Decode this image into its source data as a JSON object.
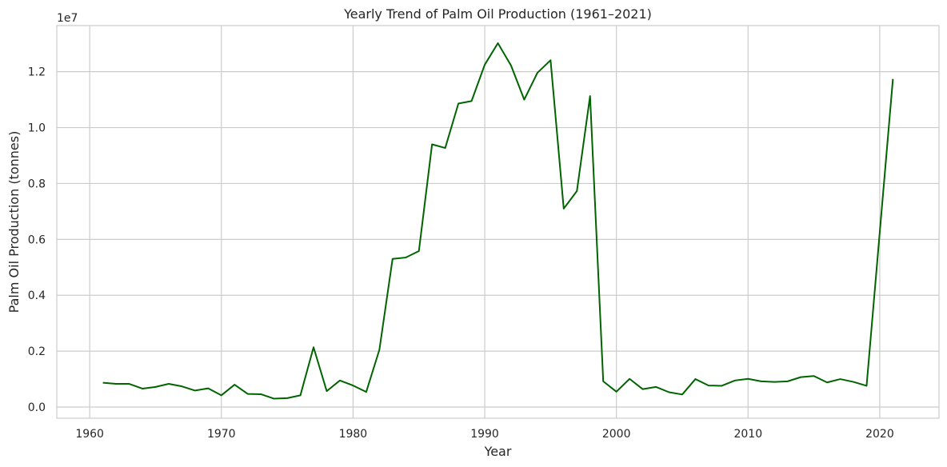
{
  "chart_data": {
    "type": "line",
    "title": "Yearly Trend of Palm Oil Production (1961–2021)",
    "xlabel": "Year",
    "ylabel": "Palm Oil Production (tonnes)",
    "y_offset_label": "1e7",
    "xlim": [
      1957.5,
      2024.5
    ],
    "ylim": [
      -0.04,
      1.365
    ],
    "y_scale_factor": 10000000,
    "x_ticks": [
      1960,
      1970,
      1980,
      1990,
      2000,
      2010,
      2020
    ],
    "x_tick_labels": [
      "1960",
      "1970",
      "1980",
      "1990",
      "2000",
      "2010",
      "2020"
    ],
    "y_ticks": [
      0.0,
      0.2,
      0.4,
      0.6,
      0.8,
      1.0,
      1.2
    ],
    "y_tick_labels": [
      "0.0",
      "0.2",
      "0.4",
      "0.6",
      "0.8",
      "1.0",
      "1.2"
    ],
    "grid": true,
    "series": [
      {
        "color": "#006400",
        "x": [
          1961,
          1962,
          1963,
          1964,
          1965,
          1966,
          1967,
          1968,
          1969,
          1970,
          1971,
          1972,
          1973,
          1974,
          1975,
          1976,
          1977,
          1978,
          1979,
          1980,
          1981,
          1982,
          1983,
          1984,
          1985,
          1986,
          1987,
          1988,
          1989,
          1990,
          1991,
          1992,
          1993,
          1994,
          1995,
          1996,
          1997,
          1998,
          1999,
          2000,
          2001,
          2002,
          2003,
          2004,
          2005,
          2006,
          2007,
          2008,
          2009,
          2010,
          2011,
          2012,
          2013,
          2014,
          2015,
          2016,
          2017,
          2018,
          2019,
          2021
        ],
        "y": [
          0.087,
          0.083,
          0.083,
          0.066,
          0.072,
          0.083,
          0.074,
          0.059,
          0.067,
          0.042,
          0.08,
          0.047,
          0.046,
          0.03,
          0.032,
          0.042,
          0.214,
          0.057,
          0.095,
          0.077,
          0.054,
          0.205,
          0.53,
          0.535,
          0.558,
          0.94,
          0.927,
          1.086,
          1.095,
          1.225,
          1.302,
          1.222,
          1.1,
          1.196,
          1.241,
          0.71,
          0.773,
          1.113,
          0.092,
          0.055,
          0.101,
          0.064,
          0.072,
          0.053,
          0.045,
          0.1,
          0.077,
          0.076,
          0.095,
          0.101,
          0.092,
          0.09,
          0.092,
          0.107,
          0.111,
          0.088,
          0.1,
          0.09,
          0.076,
          1.174
        ]
      }
    ]
  }
}
